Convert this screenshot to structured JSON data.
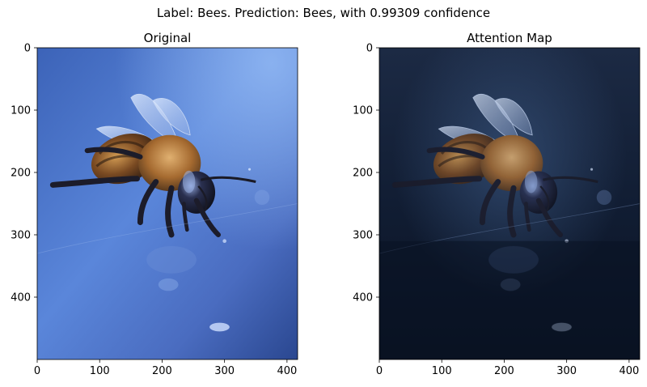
{
  "suptitle": "Label: Bees. Prediction: Bees, with 0.99309 confidence",
  "chart_data": [
    {
      "type": "image",
      "title": "Original",
      "xlim": [
        0,
        417
      ],
      "ylim": [
        500,
        0
      ],
      "xticks": [
        0,
        100,
        200,
        300,
        400
      ],
      "yticks": [
        0,
        100,
        200,
        300,
        400
      ]
    },
    {
      "type": "image",
      "title": "Attention Map",
      "xlim": [
        0,
        417
      ],
      "ylim": [
        500,
        0
      ],
      "xticks": [
        0,
        100,
        200,
        300,
        400
      ],
      "yticks": [
        0,
        100,
        200,
        300,
        400
      ]
    }
  ],
  "colors": {
    "photo_background_light": "#7fa4e8",
    "photo_background_dark": "#2b4a92",
    "attention_background": "#0e1a2e",
    "bee_fur": "#b07a3e",
    "bee_dark": "#1c1c2a"
  }
}
